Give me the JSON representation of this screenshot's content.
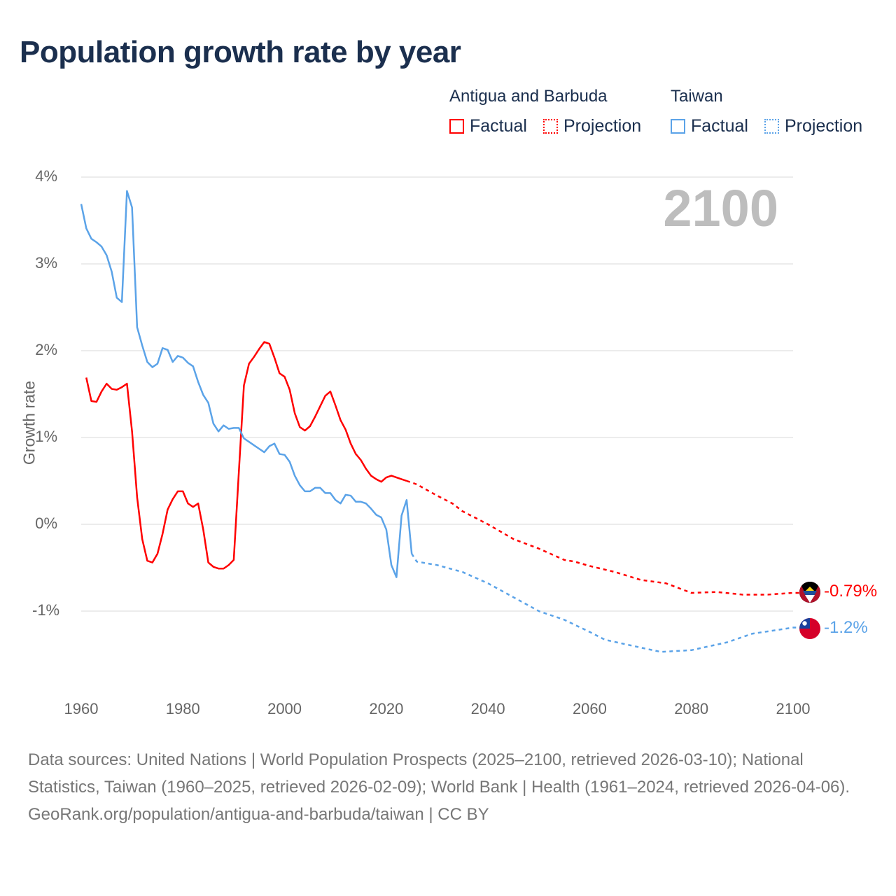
{
  "title": "Population growth rate by year",
  "year_label": "2100",
  "legend": {
    "groups": [
      {
        "name": "Antigua and Barbuda",
        "factual": "Factual",
        "projection": "Projection",
        "color": "#ff0000"
      },
      {
        "name": "Taiwan",
        "factual": "Factual",
        "projection": "Projection",
        "color": "#5ba3e8"
      }
    ]
  },
  "end_labels": {
    "antigua": "-0.79%",
    "taiwan": "-1.2%"
  },
  "footer": {
    "sources": "Data sources: United Nations | World Population Prospects (2025–2100, retrieved 2026-03-10); National Statistics, Taiwan (1960–2025, retrieved 2026-02-09); World Bank | Health (1961–2024, retrieved 2026-04-06).",
    "credit": "GeoRank.org/population/antigua-and-barbuda/taiwan | CC BY"
  },
  "chart_data": {
    "type": "line",
    "title": "Population growth rate by year",
    "xlabel": "",
    "ylabel": "Growth rate",
    "xlim": [
      1960,
      2100
    ],
    "ylim": [
      -2,
      4
    ],
    "x_ticks": [
      "1960",
      "1980",
      "2000",
      "2020",
      "2040",
      "2060",
      "2080",
      "2100"
    ],
    "y_ticks": [
      {
        "v": 4,
        "label": "4%"
      },
      {
        "v": 3,
        "label": "3%"
      },
      {
        "v": 2,
        "label": "2%"
      },
      {
        "v": 1,
        "label": "1%"
      },
      {
        "v": 0,
        "label": "0%"
      },
      {
        "v": -1,
        "label": "-1%"
      }
    ],
    "grid": true,
    "series": [
      {
        "name": "Antigua and Barbuda – Factual",
        "color": "#ff0000",
        "dashed": false,
        "x": [
          1961,
          1962,
          1963,
          1964,
          1965,
          1966,
          1967,
          1968,
          1969,
          1970,
          1971,
          1972,
          1973,
          1974,
          1975,
          1976,
          1977,
          1978,
          1979,
          1980,
          1981,
          1982,
          1983,
          1984,
          1985,
          1986,
          1987,
          1988,
          1989,
          1990,
          1991,
          1992,
          1993,
          1994,
          1995,
          1996,
          1997,
          1998,
          1999,
          2000,
          2001,
          2002,
          2003,
          2004,
          2005,
          2006,
          2007,
          2008,
          2009,
          2010,
          2011,
          2012,
          2013,
          2014,
          2015,
          2016,
          2017,
          2018,
          2019,
          2020,
          2021,
          2022,
          2023,
          2024
        ],
        "y": [
          1.69,
          1.42,
          1.41,
          1.53,
          1.62,
          1.56,
          1.55,
          1.58,
          1.62,
          1.07,
          0.31,
          -0.17,
          -0.42,
          -0.44,
          -0.34,
          -0.11,
          0.17,
          0.29,
          0.38,
          0.38,
          0.24,
          0.2,
          0.24,
          -0.06,
          -0.44,
          -0.49,
          -0.51,
          -0.51,
          -0.47,
          -0.41,
          0.6,
          1.6,
          1.85,
          1.93,
          2.02,
          2.1,
          2.08,
          1.92,
          1.74,
          1.7,
          1.55,
          1.28,
          1.12,
          1.08,
          1.13,
          1.24,
          1.36,
          1.48,
          1.53,
          1.37,
          1.2,
          1.09,
          0.93,
          0.81,
          0.74,
          0.64,
          0.56,
          0.52,
          0.49,
          0.54,
          0.56,
          0.54,
          0.52,
          0.5
        ]
      },
      {
        "name": "Antigua and Barbuda – Projection",
        "color": "#ff0000",
        "dashed": true,
        "x": [
          2024,
          2026,
          2030,
          2033,
          2035,
          2040,
          2045,
          2050,
          2055,
          2057,
          2060,
          2065,
          2070,
          2075,
          2080,
          2085,
          2090,
          2095,
          2100
        ],
        "y": [
          0.5,
          0.46,
          0.33,
          0.24,
          0.15,
          0.0,
          -0.17,
          -0.28,
          -0.41,
          -0.43,
          -0.48,
          -0.55,
          -0.64,
          -0.68,
          -0.79,
          -0.78,
          -0.81,
          -0.81,
          -0.79
        ]
      },
      {
        "name": "Taiwan – Factual",
        "color": "#5ba3e8",
        "dashed": false,
        "x": [
          1960,
          1961,
          1962,
          1963,
          1964,
          1965,
          1966,
          1967,
          1968,
          1969,
          1970,
          1971,
          1972,
          1973,
          1974,
          1975,
          1976,
          1977,
          1978,
          1979,
          1980,
          1981,
          1982,
          1983,
          1984,
          1985,
          1986,
          1987,
          1988,
          1989,
          1990,
          1991,
          1992,
          1993,
          1994,
          1995,
          1996,
          1997,
          1998,
          1999,
          2000,
          2001,
          2002,
          2003,
          2004,
          2005,
          2006,
          2007,
          2008,
          2009,
          2010,
          2011,
          2012,
          2013,
          2014,
          2015,
          2016,
          2017,
          2018,
          2019,
          2020,
          2021,
          2022,
          2023,
          2024,
          2025
        ],
        "y": [
          3.69,
          3.41,
          3.29,
          3.25,
          3.2,
          3.1,
          2.91,
          2.61,
          2.56,
          3.84,
          3.65,
          2.27,
          2.06,
          1.87,
          1.81,
          1.85,
          2.03,
          2.01,
          1.87,
          1.94,
          1.92,
          1.86,
          1.82,
          1.64,
          1.49,
          1.4,
          1.16,
          1.07,
          1.14,
          1.1,
          1.11,
          1.11,
          0.99,
          0.95,
          0.91,
          0.87,
          0.83,
          0.9,
          0.93,
          0.81,
          0.8,
          0.72,
          0.56,
          0.45,
          0.38,
          0.38,
          0.42,
          0.42,
          0.36,
          0.36,
          0.28,
          0.24,
          0.34,
          0.33,
          0.26,
          0.26,
          0.24,
          0.18,
          0.11,
          0.08,
          -0.06,
          -0.47,
          -0.61,
          0.1,
          0.28,
          -0.34
        ]
      },
      {
        "name": "Taiwan – Projection",
        "color": "#5ba3e8",
        "dashed": true,
        "x": [
          2025,
          2026,
          2030,
          2035,
          2040,
          2045,
          2050,
          2055,
          2060,
          2063,
          2070,
          2074,
          2080,
          2087,
          2092,
          2100
        ],
        "y": [
          -0.34,
          -0.43,
          -0.47,
          -0.55,
          -0.68,
          -0.84,
          -1.0,
          -1.1,
          -1.24,
          -1.33,
          -1.42,
          -1.47,
          -1.45,
          -1.36,
          -1.26,
          -1.19
        ]
      }
    ]
  }
}
